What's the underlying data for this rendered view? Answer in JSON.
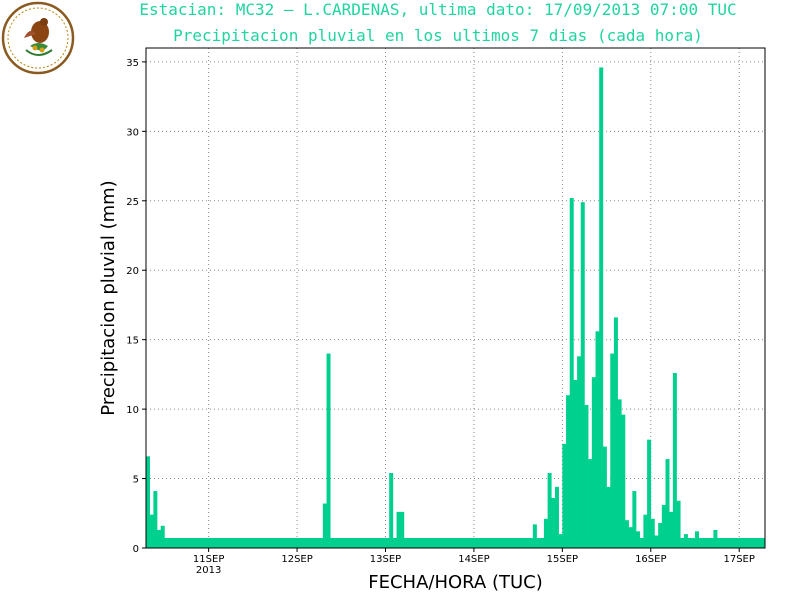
{
  "header": {
    "title": "Estacian: MC32 — L.CARDENAS, ultima dato: 17/09/2013 07:00 TUC",
    "subtitle": "Precipitacion pluvial en los ultimos 7 dias (cada hora)"
  },
  "colors": {
    "bar": "#00d08e",
    "title": "#21d4a0",
    "axis": "#000000",
    "grid": "#888888"
  },
  "logo": {
    "icon": "eagle-seal-icon"
  },
  "chart_data": {
    "type": "bar",
    "title": "Estacian: MC32 — L.CARDENAS, ultima dato: 17/09/2013 07:00 TUC",
    "subtitle": "Precipitacion pluvial en los ultimos 7 dias (cada hora)",
    "xlabel": "FECHA/HORA (TUC)",
    "ylabel": "Precipitacion pluvial (mm)",
    "ylim": [
      0,
      36
    ],
    "yticks": [
      0,
      5,
      10,
      15,
      20,
      25,
      30,
      35
    ],
    "grid": true,
    "x_tick_labels": [
      {
        "label": "11SEP",
        "sublabel": "2013",
        "hour": 17
      },
      {
        "label": "12SEP",
        "hour": 41
      },
      {
        "label": "13SEP",
        "hour": 65
      },
      {
        "label": "14SEP",
        "hour": 89
      },
      {
        "label": "15SEP",
        "hour": 113
      },
      {
        "label": "16SEP",
        "hour": 137
      },
      {
        "label": "17SEP",
        "hour": 161
      }
    ],
    "hour_range": [
      0,
      168
    ],
    "values": [
      6.6,
      2.4,
      4.1,
      1.3,
      1.6,
      0.6,
      0.3,
      0.0,
      0.0,
      0.0,
      0.0,
      0.0,
      0.0,
      0.0,
      0.0,
      0.0,
      0.0,
      0.0,
      0.0,
      0.0,
      0.0,
      0.0,
      0.0,
      0.0,
      0.0,
      0.0,
      0.0,
      0.0,
      0.0,
      0.0,
      0.0,
      0.0,
      0.0,
      0.0,
      0.0,
      0.0,
      0.0,
      0.0,
      0.0,
      0.0,
      0.0,
      0.0,
      0.0,
      0.0,
      0.0,
      0.0,
      0.0,
      0.0,
      3.2,
      14.0,
      0.5,
      0.0,
      0.0,
      0.0,
      0.0,
      0.0,
      0.0,
      0.0,
      0.0,
      0.0,
      0.0,
      0.0,
      0.0,
      0.0,
      0.0,
      0.0,
      5.4,
      0.2,
      2.6,
      2.6,
      0.3,
      0.0,
      0.0,
      0.0,
      0.0,
      0.0,
      0.0,
      0.0,
      0.0,
      0.0,
      0.0,
      0.0,
      0.0,
      0.0,
      0.0,
      0.0,
      0.0,
      0.0,
      0.3,
      0.0,
      0.0,
      0.0,
      0.0,
      0.0,
      0.0,
      0.0,
      0.0,
      0.0,
      0.0,
      0.0,
      0.0,
      0.0,
      0.0,
      0.0,
      0.2,
      1.7,
      0.3,
      0.7,
      2.1,
      5.4,
      3.6,
      4.4,
      1.0,
      7.5,
      11.0,
      25.2,
      12.1,
      13.8,
      24.9,
      10.3,
      6.4,
      12.3,
      15.6,
      34.6,
      7.3,
      4.4,
      14.0,
      16.6,
      10.7,
      9.6,
      2.0,
      1.5,
      4.1,
      1.2,
      0.3,
      2.4,
      7.8,
      2.1,
      0.9,
      1.8,
      3.1,
      6.4,
      2.6,
      12.6,
      3.4,
      0.5,
      1.0,
      0.0,
      0.6,
      1.2,
      0.2,
      0.0,
      0.0,
      0.0,
      1.3,
      0.0,
      0.3,
      0.0,
      0.0,
      0.0,
      0.5,
      0.0,
      0.0,
      0.0,
      0.7,
      0.5,
      0.0,
      0.0,
      0.0,
      0.0,
      0.0
    ]
  }
}
